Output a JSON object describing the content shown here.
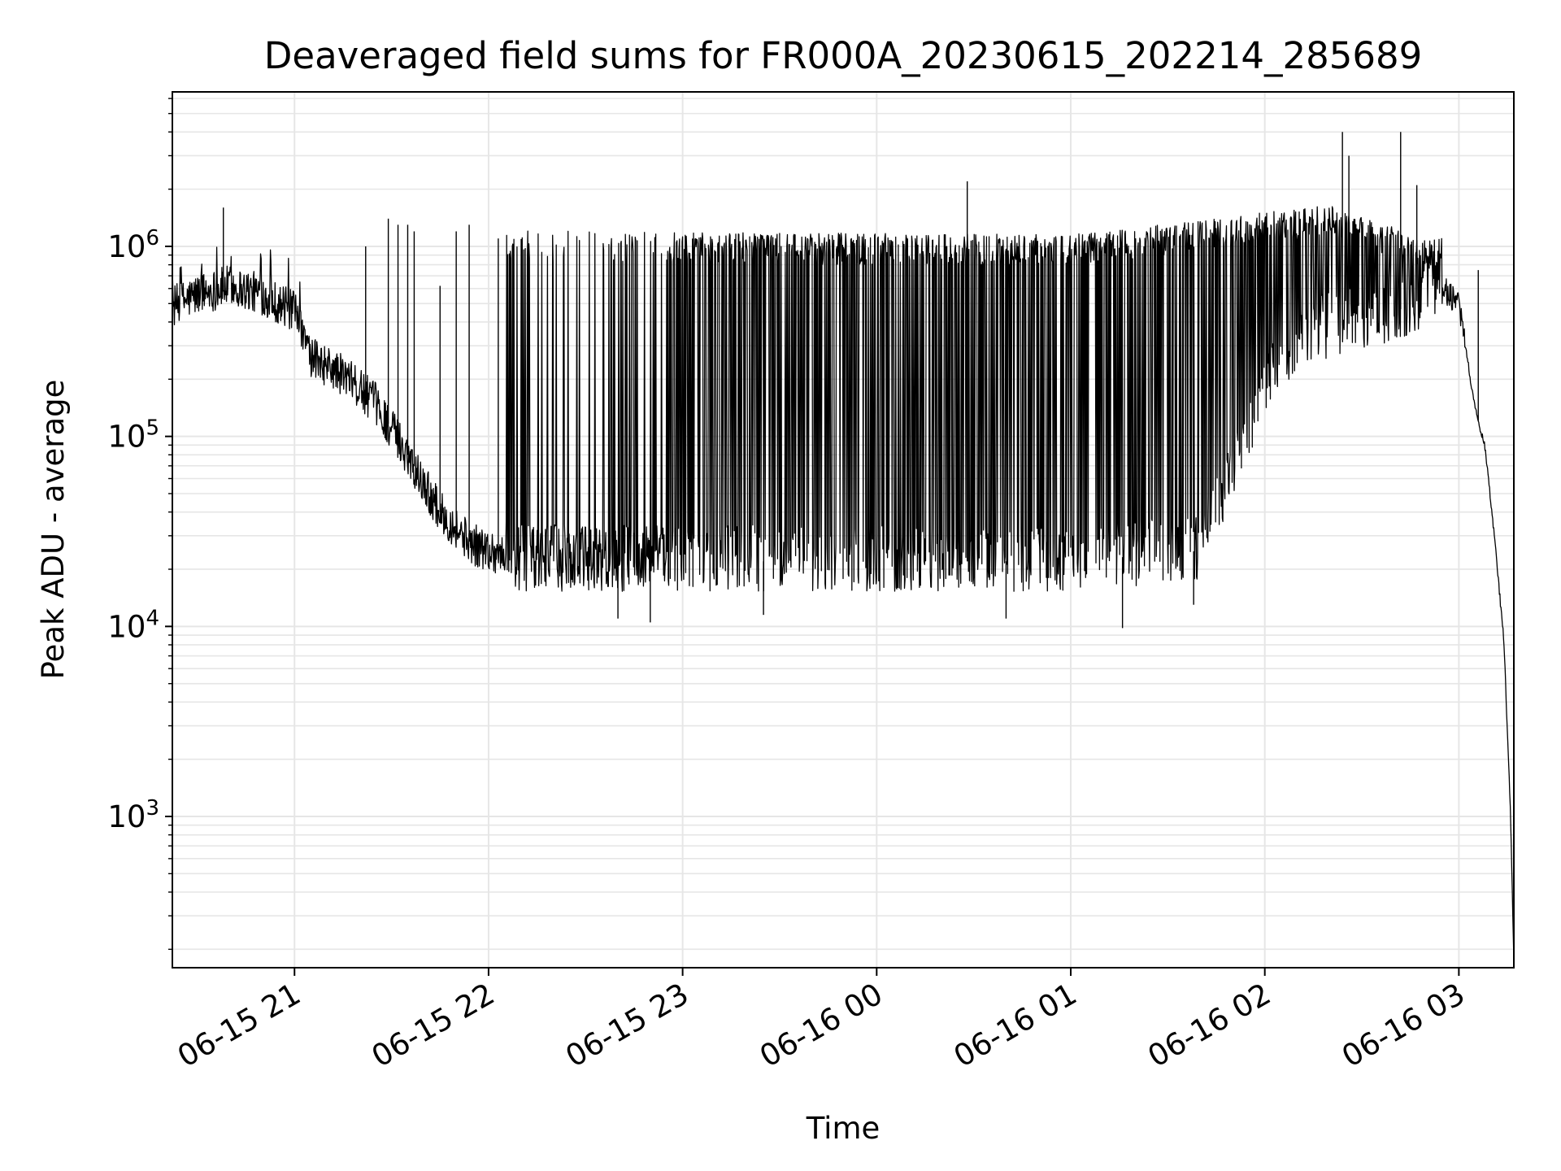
{
  "chart_data": {
    "type": "line",
    "title": "Deaveraged field sums for FR000A_20230615_202214_285689",
    "xlabel": "Time",
    "ylabel": "Peak ADU - average",
    "y_scale": "log",
    "ylim": [
      160,
      6500000
    ],
    "xlim": [
      "2023-06-15 20:22:14",
      "2023-06-16 03:17:00"
    ],
    "grid": true,
    "line_color": "#000000",
    "grid_color": "#e6e6e6",
    "x_ticks": [
      {
        "value": "2023-06-15 21:00",
        "label": "06-15 21"
      },
      {
        "value": "2023-06-15 22:00",
        "label": "06-15 22"
      },
      {
        "value": "2023-06-15 23:00",
        "label": "06-15 23"
      },
      {
        "value": "2023-06-16 00:00",
        "label": "06-16 00"
      },
      {
        "value": "2023-06-16 01:00",
        "label": "06-16 01"
      },
      {
        "value": "2023-06-16 02:00",
        "label": "06-16 02"
      },
      {
        "value": "2023-06-16 03:00",
        "label": "06-16 03"
      }
    ],
    "y_ticks": [
      {
        "value": 1000,
        "base": "10",
        "exp": "3"
      },
      {
        "value": 10000,
        "base": "10",
        "exp": "4"
      },
      {
        "value": 100000,
        "base": "10",
        "exp": "5"
      },
      {
        "value": 1000000,
        "base": "10",
        "exp": "6"
      }
    ],
    "series": [
      {
        "baseline_trend": [
          [
            "2023-06-15 20:22",
            480000
          ],
          [
            "2023-06-15 20:30",
            560000
          ],
          [
            "2023-06-15 20:40",
            620000
          ],
          [
            "2023-06-15 20:50",
            560000
          ],
          [
            "2023-06-15 21:00",
            450000
          ],
          [
            "2023-06-15 21:05",
            260000
          ],
          [
            "2023-06-15 21:15",
            210000
          ],
          [
            "2023-06-15 21:25",
            150000
          ],
          [
            "2023-06-15 21:35",
            80000
          ],
          [
            "2023-06-15 21:45",
            40000
          ],
          [
            "2023-06-15 21:55",
            27000
          ],
          [
            "2023-06-15 22:10",
            22000
          ],
          [
            "2023-06-15 22:30",
            22000
          ],
          [
            "2023-06-15 23:00",
            22000
          ],
          [
            "2023-06-16 00:00",
            22000
          ],
          [
            "2023-06-16 01:00",
            22000
          ],
          [
            "2023-06-16 01:40",
            25000
          ],
          [
            "2023-06-16 01:50",
            60000
          ],
          [
            "2023-06-16 02:00",
            200000
          ],
          [
            "2023-06-16 02:15",
            350000
          ],
          [
            "2023-06-16 02:40",
            450000
          ],
          [
            "2023-06-16 02:55",
            600000
          ],
          [
            "2023-06-16 03:00",
            500000
          ],
          [
            "2023-06-16 03:02",
            300000
          ],
          [
            "2023-06-16 03:05",
            140000
          ],
          [
            "2023-06-16 03:08",
            90000
          ],
          [
            "2023-06-16 03:11",
            30000
          ],
          [
            "2023-06-16 03:14",
            8000
          ],
          [
            "2023-06-16 03:16",
            1000
          ],
          [
            "2023-06-16 03:17",
            170
          ]
        ],
        "spike_envelope": [
          [
            "2023-06-15 20:22",
            750000
          ],
          [
            "2023-06-15 20:50",
            950000
          ],
          [
            "2023-06-15 21:00",
            650000
          ],
          [
            "2023-06-15 21:15",
            350000
          ],
          [
            "2023-06-15 21:30",
            200000
          ],
          [
            "2023-06-15 22:05",
            1100000
          ],
          [
            "2023-06-16 01:00",
            1050000
          ],
          [
            "2023-06-16 01:40",
            1250000
          ],
          [
            "2023-06-16 02:20",
            1500000
          ],
          [
            "2023-06-16 02:50",
            1000000
          ]
        ],
        "spikes": [
          [
            "2023-06-15 20:38",
            1600000
          ],
          [
            "2023-06-15 21:22",
            1000000
          ],
          [
            "2023-06-15 21:29",
            1400000
          ],
          [
            "2023-06-15 21:32",
            1300000
          ],
          [
            "2023-06-15 21:35",
            1300000
          ],
          [
            "2023-06-15 21:37",
            1200000
          ],
          [
            "2023-06-15 21:45",
            620000
          ],
          [
            "2023-06-15 21:50",
            1200000
          ],
          [
            "2023-06-15 21:54",
            1300000
          ],
          [
            "2023-06-15 22:03",
            1100000
          ],
          [
            "2023-06-16 00:28",
            2200000
          ],
          [
            "2023-06-16 02:24",
            4000000
          ],
          [
            "2023-06-16 02:26",
            3000000
          ],
          [
            "2023-06-16 02:42",
            4000000
          ],
          [
            "2023-06-16 02:47",
            2100000
          ],
          [
            "2023-06-16 03:06",
            750000
          ]
        ],
        "dips": [
          [
            "2023-06-15 22:40",
            11000
          ],
          [
            "2023-06-15 22:50",
            10500
          ],
          [
            "2023-06-15 23:25",
            11500
          ],
          [
            "2023-06-16 00:40",
            11000
          ],
          [
            "2023-06-16 01:16",
            9800
          ],
          [
            "2023-06-16 01:38",
            13000
          ]
        ]
      }
    ]
  }
}
